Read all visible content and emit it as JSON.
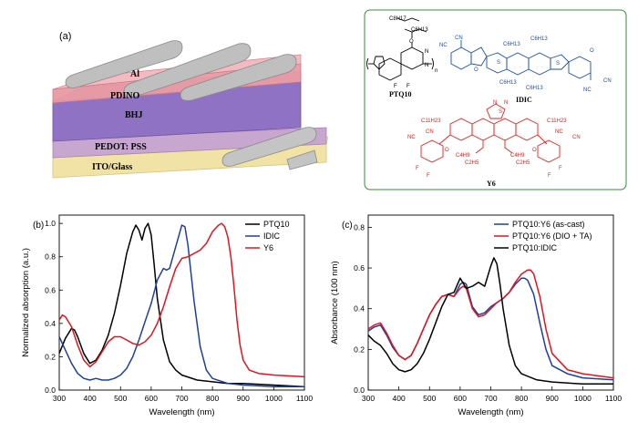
{
  "panel_a": {
    "label": "(a)",
    "layers": [
      "Al",
      "PDINO",
      "BHJ",
      "PEDOT: PSS",
      "ITO/Glass"
    ]
  },
  "structures": {
    "ptq10": {
      "name": "PTQ10",
      "side_top": "C8H17",
      "side_bottom": "C6H13",
      "fluorines": [
        "F",
        "F"
      ],
      "nitrogens": [
        "N",
        "N"
      ],
      "oxygen": "O",
      "repeat": "n"
    },
    "idic": {
      "name": "IDIC",
      "side_chains": [
        "C6H13",
        "C6H13",
        "C6H13",
        "C6H13"
      ],
      "cn_groups": [
        "NC",
        "CN",
        "NC",
        "CN"
      ],
      "oxygens": [
        "O",
        "O"
      ],
      "sulfurs": [
        "S",
        "S"
      ]
    },
    "y6": {
      "name": "Y6",
      "side_chains": [
        "C11H23",
        "C11H23",
        "C4H9",
        "C2H5",
        "C4H9",
        "C2H5"
      ],
      "core_heteroatoms": [
        "N",
        "S",
        "N"
      ],
      "cn_groups": [
        "NC",
        "CN",
        "NC",
        "CN"
      ],
      "fluorines": [
        "F",
        "F",
        "F",
        "F"
      ],
      "oxygens": [
        "O",
        "O"
      ]
    }
  },
  "colors": {
    "black": "#000000",
    "blue": "#1f3f9f",
    "red": "#e0141e",
    "structure_blue": "#1b4fa8",
    "structure_red": "#e32020",
    "box_border": "#3b8a3b"
  },
  "chart_data": [
    {
      "panel": "(b)",
      "type": "line",
      "title": "",
      "xlabel": "Wavelength (nm)",
      "ylabel": "Normalized absorption (a.u.)",
      "xlim": [
        300,
        1100
      ],
      "ylim": [
        0.0,
        1.05
      ],
      "xticks": [
        300,
        400,
        500,
        600,
        700,
        800,
        900,
        1000,
        1100
      ],
      "yticks": [
        0.0,
        0.2,
        0.4,
        0.6,
        0.8,
        1.0
      ],
      "legend_position": "top-right",
      "series": [
        {
          "name": "PTQ10",
          "color": "#000000",
          "x": [
            300,
            320,
            340,
            350,
            360,
            380,
            400,
            420,
            440,
            460,
            480,
            500,
            520,
            540,
            550,
            560,
            570,
            580,
            590,
            600,
            610,
            620,
            640,
            660,
            680,
            700,
            750,
            800,
            850,
            900,
            1000,
            1100
          ],
          "y": [
            0.22,
            0.31,
            0.37,
            0.36,
            0.32,
            0.22,
            0.16,
            0.18,
            0.24,
            0.33,
            0.46,
            0.63,
            0.82,
            0.95,
            0.99,
            0.96,
            0.9,
            0.97,
            1.0,
            0.93,
            0.75,
            0.55,
            0.3,
            0.17,
            0.12,
            0.09,
            0.06,
            0.05,
            0.04,
            0.04,
            0.03,
            0.02
          ]
        },
        {
          "name": "IDIC",
          "color": "#1f3f9f",
          "x": [
            300,
            320,
            340,
            360,
            380,
            400,
            420,
            440,
            460,
            480,
            500,
            520,
            540,
            560,
            580,
            600,
            620,
            640,
            650,
            660,
            680,
            700,
            710,
            720,
            740,
            760,
            780,
            800,
            850,
            900,
            1000,
            1100
          ],
          "y": [
            0.32,
            0.24,
            0.16,
            0.1,
            0.07,
            0.06,
            0.07,
            0.06,
            0.06,
            0.07,
            0.09,
            0.13,
            0.2,
            0.3,
            0.41,
            0.52,
            0.66,
            0.73,
            0.72,
            0.73,
            0.86,
            0.99,
            0.98,
            0.87,
            0.53,
            0.26,
            0.12,
            0.07,
            0.04,
            0.03,
            0.02,
            0.02
          ]
        },
        {
          "name": "Y6",
          "color": "#e0141e",
          "x": [
            300,
            310,
            320,
            340,
            360,
            380,
            400,
            420,
            440,
            460,
            480,
            500,
            520,
            540,
            560,
            580,
            600,
            620,
            640,
            660,
            680,
            700,
            720,
            740,
            760,
            780,
            800,
            820,
            830,
            840,
            850,
            860,
            870,
            880,
            890,
            900,
            920,
            950,
            1000,
            1100
          ],
          "y": [
            0.42,
            0.45,
            0.44,
            0.38,
            0.27,
            0.18,
            0.14,
            0.17,
            0.23,
            0.29,
            0.32,
            0.32,
            0.3,
            0.28,
            0.27,
            0.29,
            0.33,
            0.4,
            0.5,
            0.62,
            0.73,
            0.79,
            0.8,
            0.82,
            0.84,
            0.88,
            0.95,
            0.99,
            1.0,
            0.98,
            0.92,
            0.8,
            0.62,
            0.42,
            0.27,
            0.18,
            0.12,
            0.1,
            0.09,
            0.08
          ]
        }
      ]
    },
    {
      "panel": "(c)",
      "type": "line",
      "title": "",
      "xlabel": "Wavelength (nm)",
      "ylabel": "Absorbance (100 nm)",
      "xlim": [
        300,
        1100
      ],
      "ylim": [
        0.0,
        0.86
      ],
      "xticks": [
        300,
        400,
        500,
        600,
        700,
        800,
        900,
        1000,
        1100
      ],
      "yticks": [
        0.0,
        0.2,
        0.4,
        0.6,
        0.8
      ],
      "legend_position": "top-right",
      "series": [
        {
          "name": "PTQ10:Y6 (as-cast)",
          "color": "#1f3f9f",
          "x": [
            300,
            320,
            340,
            360,
            380,
            400,
            420,
            440,
            460,
            480,
            500,
            520,
            540,
            560,
            580,
            600,
            610,
            620,
            640,
            660,
            680,
            700,
            720,
            740,
            760,
            780,
            800,
            810,
            820,
            840,
            860,
            880,
            900,
            950,
            1000,
            1100
          ],
          "y": [
            0.29,
            0.31,
            0.32,
            0.27,
            0.21,
            0.17,
            0.15,
            0.17,
            0.23,
            0.3,
            0.37,
            0.42,
            0.46,
            0.47,
            0.46,
            0.52,
            0.53,
            0.52,
            0.41,
            0.37,
            0.38,
            0.41,
            0.43,
            0.45,
            0.48,
            0.52,
            0.55,
            0.55,
            0.54,
            0.47,
            0.33,
            0.2,
            0.12,
            0.08,
            0.06,
            0.05
          ]
        },
        {
          "name": "PTQ10:Y6 (DIO + TA)",
          "color": "#e0141e",
          "x": [
            300,
            320,
            340,
            360,
            380,
            400,
            420,
            440,
            460,
            480,
            500,
            520,
            540,
            560,
            580,
            600,
            610,
            620,
            640,
            660,
            680,
            700,
            720,
            740,
            760,
            780,
            800,
            820,
            830,
            840,
            860,
            880,
            900,
            950,
            1000,
            1100
          ],
          "y": [
            0.3,
            0.32,
            0.33,
            0.28,
            0.22,
            0.17,
            0.15,
            0.17,
            0.23,
            0.3,
            0.37,
            0.42,
            0.46,
            0.47,
            0.46,
            0.5,
            0.51,
            0.5,
            0.4,
            0.36,
            0.37,
            0.4,
            0.43,
            0.45,
            0.48,
            0.53,
            0.57,
            0.59,
            0.59,
            0.57,
            0.46,
            0.3,
            0.18,
            0.1,
            0.08,
            0.06
          ]
        },
        {
          "name": "PTQ10:IDIC",
          "color": "#000000",
          "x": [
            300,
            320,
            340,
            360,
            380,
            400,
            420,
            440,
            460,
            480,
            500,
            520,
            540,
            560,
            580,
            600,
            620,
            640,
            660,
            680,
            700,
            710,
            720,
            730,
            740,
            760,
            780,
            800,
            850,
            900,
            1000,
            1100
          ],
          "y": [
            0.27,
            0.24,
            0.22,
            0.18,
            0.13,
            0.1,
            0.09,
            0.1,
            0.13,
            0.18,
            0.25,
            0.33,
            0.41,
            0.47,
            0.48,
            0.55,
            0.5,
            0.51,
            0.53,
            0.51,
            0.61,
            0.65,
            0.62,
            0.52,
            0.4,
            0.22,
            0.12,
            0.08,
            0.05,
            0.04,
            0.03,
            0.03
          ]
        }
      ]
    }
  ]
}
